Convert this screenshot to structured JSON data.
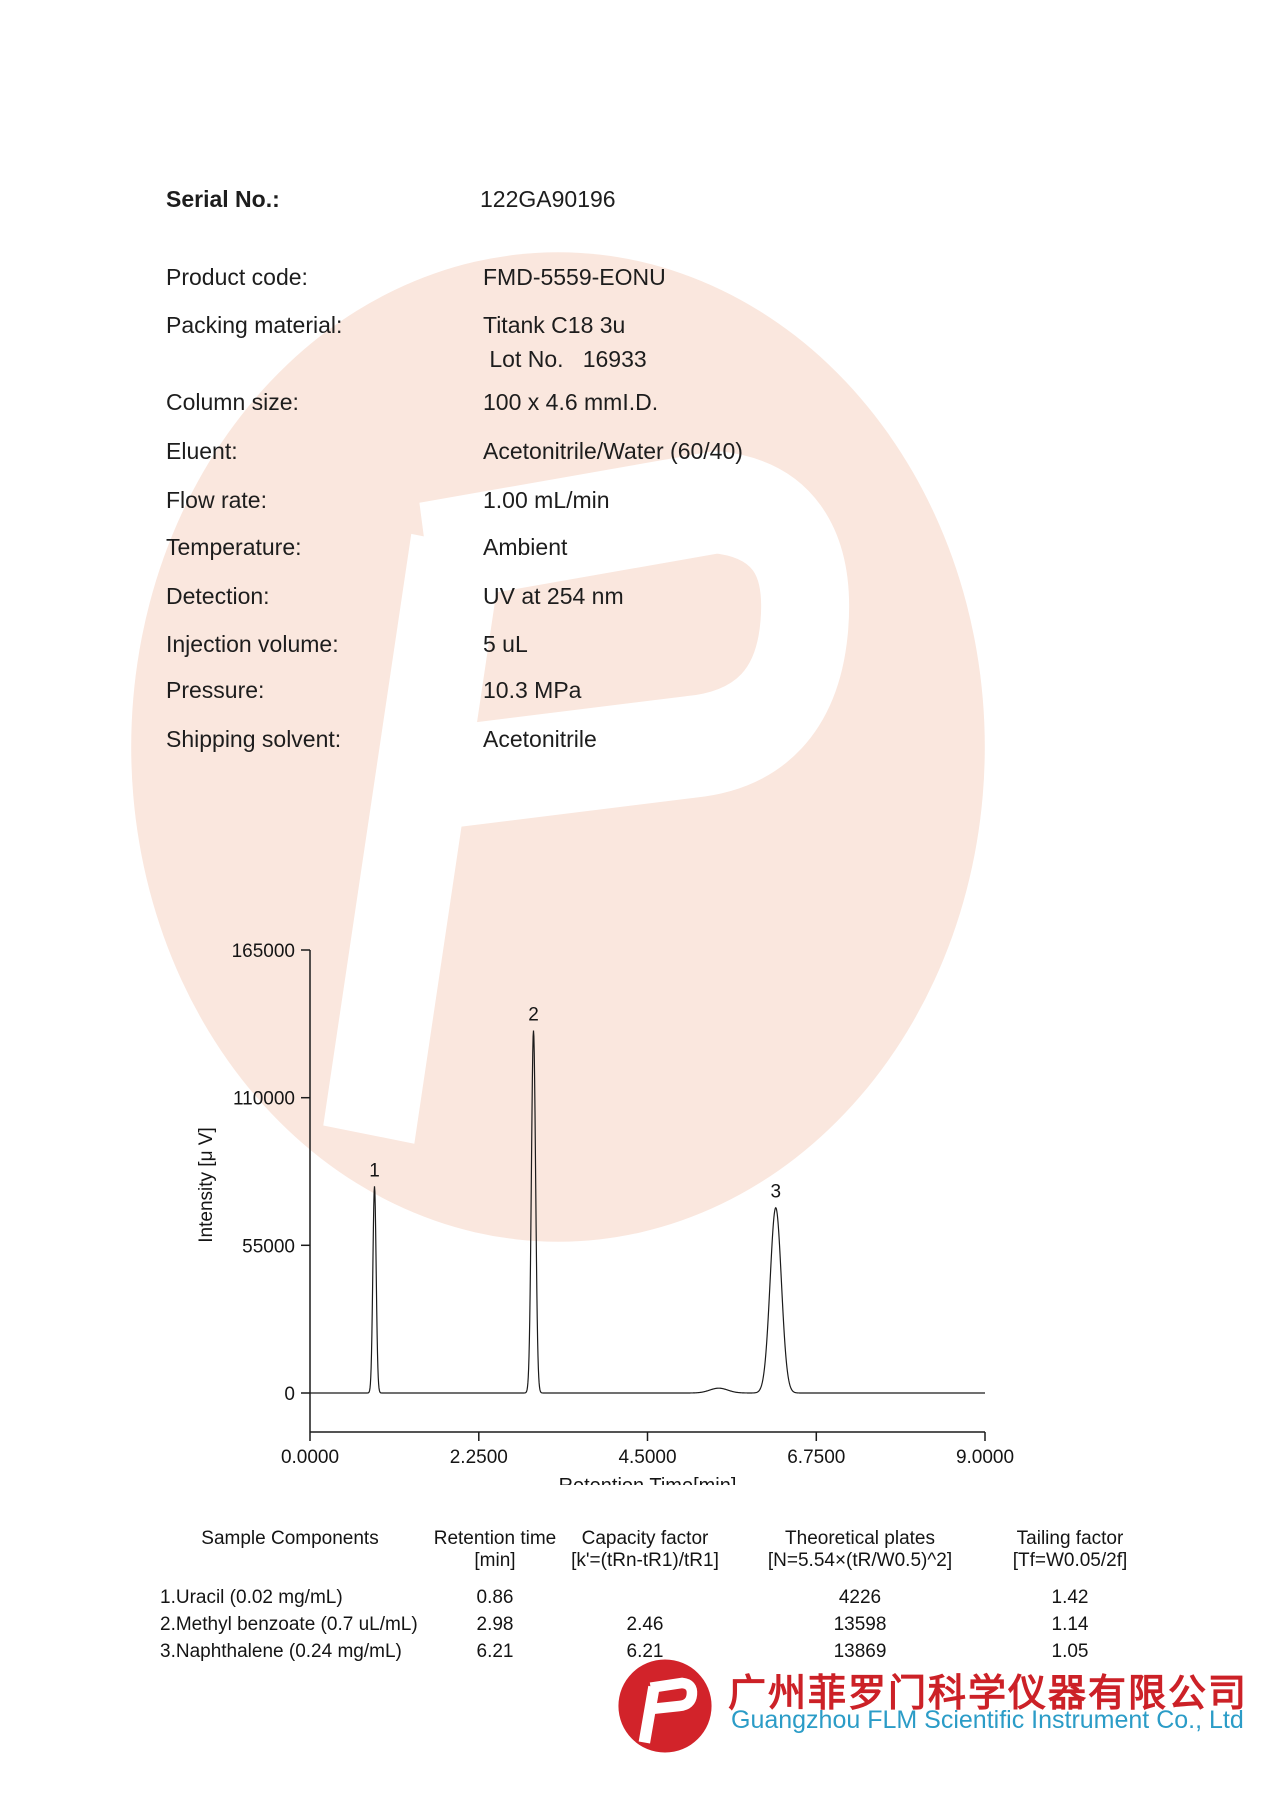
{
  "document": {
    "serial": {
      "label": "Serial No.:",
      "value": "122GA90196"
    },
    "specs": [
      {
        "label": "Product code:",
        "value": "FMD-5559-EONU"
      },
      {
        "label": "Packing material:",
        "value": "Titank C18 3u",
        "value2": "Lot No.   16933"
      },
      {
        "label": "Column size:",
        "value": "100 x 4.6 mmI.D."
      },
      {
        "label": "Eluent:",
        "value": "Acetonitrile/Water (60/40)"
      },
      {
        "label": "Flow rate:",
        "value": "1.00 mL/min"
      },
      {
        "label": "Temperature:",
        "value": "Ambient"
      },
      {
        "label": "Detection:",
        "value": "UV at 254 nm"
      },
      {
        "label": "Injection volume:",
        "value": "5 uL"
      },
      {
        "label": "Pressure:",
        "value": "10.3 MPa"
      },
      {
        "label": "Shipping solvent:",
        "value": "Acetonitrile"
      }
    ]
  },
  "chart_data": {
    "type": "line",
    "title": "",
    "xlabel": "Retention Time[min]",
    "ylabel": "Intensity [μ V]",
    "xlim": [
      0,
      9
    ],
    "ylim": [
      0,
      165000
    ],
    "grid": false,
    "x_ticks": [
      {
        "v": 0,
        "label": "0.0000"
      },
      {
        "v": 2.25,
        "label": "2.2500"
      },
      {
        "v": 4.5,
        "label": "4.5000"
      },
      {
        "v": 6.75,
        "label": "6.7500"
      },
      {
        "v": 9,
        "label": "9.0000"
      }
    ],
    "y_ticks": [
      {
        "v": 0,
        "label": "0"
      },
      {
        "v": 55000,
        "label": "55000"
      },
      {
        "v": 110000,
        "label": "110000"
      },
      {
        "v": 165000,
        "label": "165000"
      }
    ],
    "peaks": [
      {
        "label": "1",
        "retention_time": 0.86,
        "height_uV": 77000
      },
      {
        "label": "2",
        "retention_time": 2.98,
        "height_uV": 135000
      },
      {
        "label": "3",
        "retention_time": 6.21,
        "height_uV": 69000
      }
    ],
    "minor_bump": {
      "retention_time": 5.45,
      "height_uV": 1800
    }
  },
  "table": {
    "headers": [
      {
        "line1": "Sample Components",
        "line2": ""
      },
      {
        "line1": "Retention time",
        "line2": "[min]"
      },
      {
        "line1": "Capacity factor",
        "line2": "[k'=(tRn-tR1)/tR1]"
      },
      {
        "line1": "Theoretical plates",
        "line2": "[N=5.54×(tR/W0.5)^2]"
      },
      {
        "line1": "Tailing factor",
        "line2": "[Tf=W0.05/2f]"
      }
    ],
    "rows": [
      [
        "1.Uracil (0.02 mg/mL)",
        "0.86",
        "",
        "4226",
        "1.42"
      ],
      [
        "2.Methyl benzoate (0.7 uL/mL)",
        "2.98",
        "2.46",
        "13598",
        "1.14"
      ],
      [
        "3.Naphthalene (0.24 mg/mL)",
        "6.21",
        "6.21",
        "13869",
        "1.05"
      ]
    ]
  },
  "footer": {
    "company_cn": "广州菲罗门科学仪器有限公司",
    "company_en": "Guangzhou FLM Scientific Instrument Co., Ltd"
  },
  "colors": {
    "brand_red": "#d2232a",
    "company_text_red": "#cc2127",
    "company_text_blue": "#2b9cc7",
    "watermark_pink": "#fae7de",
    "line_black": "#1b1b1b"
  }
}
